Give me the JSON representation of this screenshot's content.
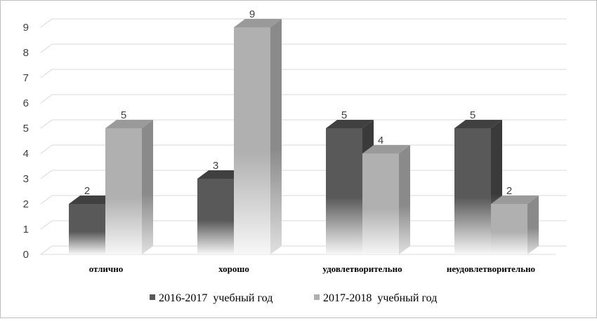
{
  "chart_data": {
    "type": "bar",
    "categories": [
      "отлично",
      "хорошо",
      "удовлетворительно",
      "неудовлетворительно"
    ],
    "series": [
      {
        "name": "2016-2017  учебный год",
        "values": [
          2,
          3,
          5,
          5
        ]
      },
      {
        "name": "2017-2018  учебный год",
        "values": [
          5,
          9,
          4,
          2
        ]
      }
    ],
    "yticks": [
      "0",
      "1",
      "2",
      "3",
      "4",
      "5",
      "6",
      "7",
      "8",
      "9"
    ],
    "ylim": [
      0,
      9
    ],
    "grid": true,
    "legend_position": "bottom",
    "colors": {
      "series1_top": "#595959",
      "series1_side": "#3a3a3a",
      "series1_roof": "#404040",
      "series2_top": "#b0b0b0",
      "series2_side": "#8a8a8a",
      "series2_roof": "#9a9a9a",
      "fade": "#f7f7f7",
      "grid": "#d9d9d9"
    }
  }
}
